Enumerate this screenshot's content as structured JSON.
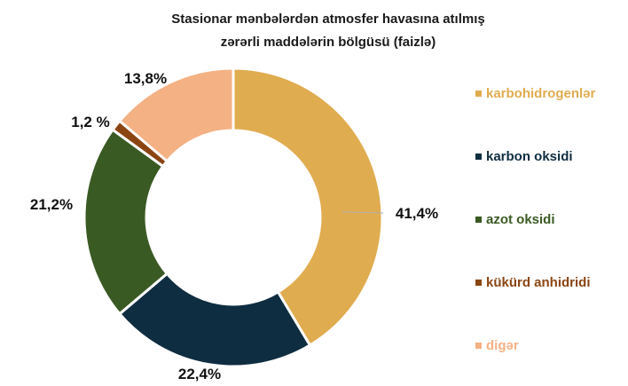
{
  "chart_data": {
    "type": "pie",
    "donut": true,
    "title": [
      "Stasionar mənbələrdən atmosfer havasına atılmış",
      "zərərli maddələrin bölgüsü (faizlə)"
    ],
    "legend_position": "right",
    "slices": [
      {
        "name": "karbohidrogenlər",
        "value": 41.4,
        "label": "41,4%",
        "color": "#E0AC50"
      },
      {
        "name": "karbon oksidi",
        "value": 22.4,
        "label": "22,4%",
        "color": "#0F2D40"
      },
      {
        "name": "azot oksidi",
        "value": 21.2,
        "label": "21,2%",
        "color": "#3A5A23"
      },
      {
        "name": "kükürd anhidridi",
        "value": 1.2,
        "label": "1,2 %",
        "color": "#8B4513"
      },
      {
        "name": "digər",
        "value": 13.8,
        "label": "13,8%",
        "color": "#F4B183"
      }
    ]
  }
}
